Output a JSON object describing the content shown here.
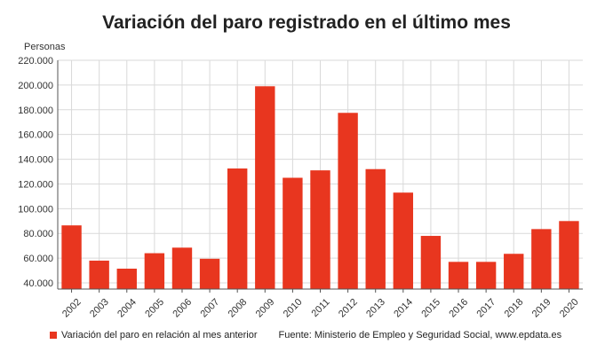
{
  "page": {
    "title": "Variación del paro registrado en el último mes",
    "legend_label": "Variación del paro en relación al mes anterior",
    "source": "Fuente: Ministerio de Empleo y Seguridad Social, www.epdata.es"
  },
  "colors": {
    "bar": "#e8361f",
    "grid": "#d9d9d9",
    "axis": "#555555"
  },
  "chart_data": {
    "type": "bar",
    "title": "Variación del paro registrado en el último mes",
    "ylabel": "Personas",
    "xlabel": "",
    "categories": [
      "2002",
      "2003",
      "2004",
      "2005",
      "2006",
      "2007",
      "2008",
      "2009",
      "2010",
      "2011",
      "2012",
      "2013",
      "2014",
      "2015",
      "2016",
      "2017",
      "2018",
      "2019",
      "2020"
    ],
    "series": [
      {
        "name": "Variación del paro en relación al mes anterior",
        "values": [
          86500,
          58000,
          51500,
          64000,
          68500,
          59500,
          132500,
          199000,
          125000,
          131000,
          177500,
          132000,
          113000,
          78000,
          57000,
          57000,
          63500,
          83500,
          90000
        ]
      }
    ],
    "ylim": [
      35000,
      220000
    ],
    "yticks": [
      40000,
      60000,
      80000,
      100000,
      120000,
      140000,
      160000,
      180000,
      200000,
      220000
    ],
    "ytick_labels": [
      "40.000",
      "60.000",
      "80.000",
      "100.000",
      "120.000",
      "140.000",
      "160.000",
      "180.000",
      "200.000",
      "220.000"
    ],
    "grid": true,
    "legend_position": "bottom-left"
  }
}
